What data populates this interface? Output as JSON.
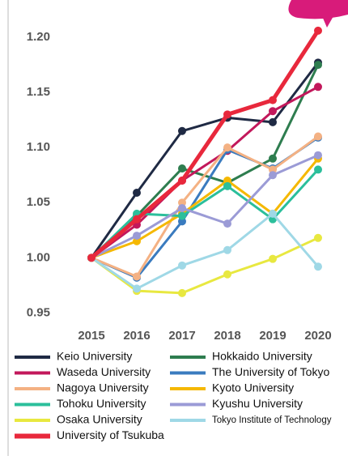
{
  "chart_data": {
    "type": "line",
    "x": [
      "2015",
      "2016",
      "2017",
      "2018",
      "2019",
      "2020"
    ],
    "ylim": [
      0.94,
      1.225
    ],
    "yticks": [
      0.95,
      {
        "value": 1.0,
        "label": "1.00"
      },
      1.05,
      {
        "value": 1.1,
        "label": "1.10"
      },
      1.15,
      {
        "value": 1.2,
        "label": "1.20"
      }
    ],
    "series": [
      {
        "name": "Keio University",
        "color": "#1f2a44",
        "values": [
          1.0,
          1.059,
          1.115,
          1.127,
          1.123,
          1.177
        ]
      },
      {
        "name": "Hokkaido University",
        "color": "#2e7d4f",
        "values": [
          1.0,
          1.038,
          1.081,
          1.068,
          1.09,
          1.175
        ]
      },
      {
        "name": "Waseda University",
        "color": "#c2185b",
        "values": [
          1.0,
          1.03,
          1.07,
          1.097,
          1.133,
          1.155
        ]
      },
      {
        "name": "The University of Tokyo",
        "color": "#3a7bbf",
        "values": [
          1.0,
          0.982,
          1.033,
          1.098,
          1.081,
          1.109
        ]
      },
      {
        "name": "Nagoya University",
        "color": "#f4b183",
        "values": [
          1.0,
          0.983,
          1.05,
          1.1,
          1.08,
          1.11
        ]
      },
      {
        "name": "Kyoto University",
        "color": "#f5b800",
        "values": [
          1.0,
          1.015,
          1.04,
          1.07,
          1.04,
          1.09
        ]
      },
      {
        "name": "Tohoku University",
        "color": "#2bbf9b",
        "values": [
          1.0,
          1.04,
          1.038,
          1.065,
          1.035,
          1.08
        ]
      },
      {
        "name": "Kyushu University",
        "color": "#9b9bd6",
        "values": [
          1.0,
          1.02,
          1.045,
          1.031,
          1.075,
          1.093
        ]
      },
      {
        "name": "Osaka University",
        "color": "#e8e840",
        "values": [
          1.0,
          0.97,
          0.968,
          0.985,
          0.999,
          1.018
        ]
      },
      {
        "name": "Tokyo Institute of Technology",
        "color": "#9fd8e6",
        "values": [
          1.0,
          0.972,
          0.993,
          1.007,
          1.04,
          0.992
        ]
      },
      {
        "name": "University of Tsukuba",
        "color": "#e8283c",
        "values": [
          1.0,
          1.035,
          1.07,
          1.13,
          1.143,
          1.206
        ]
      }
    ]
  }
}
